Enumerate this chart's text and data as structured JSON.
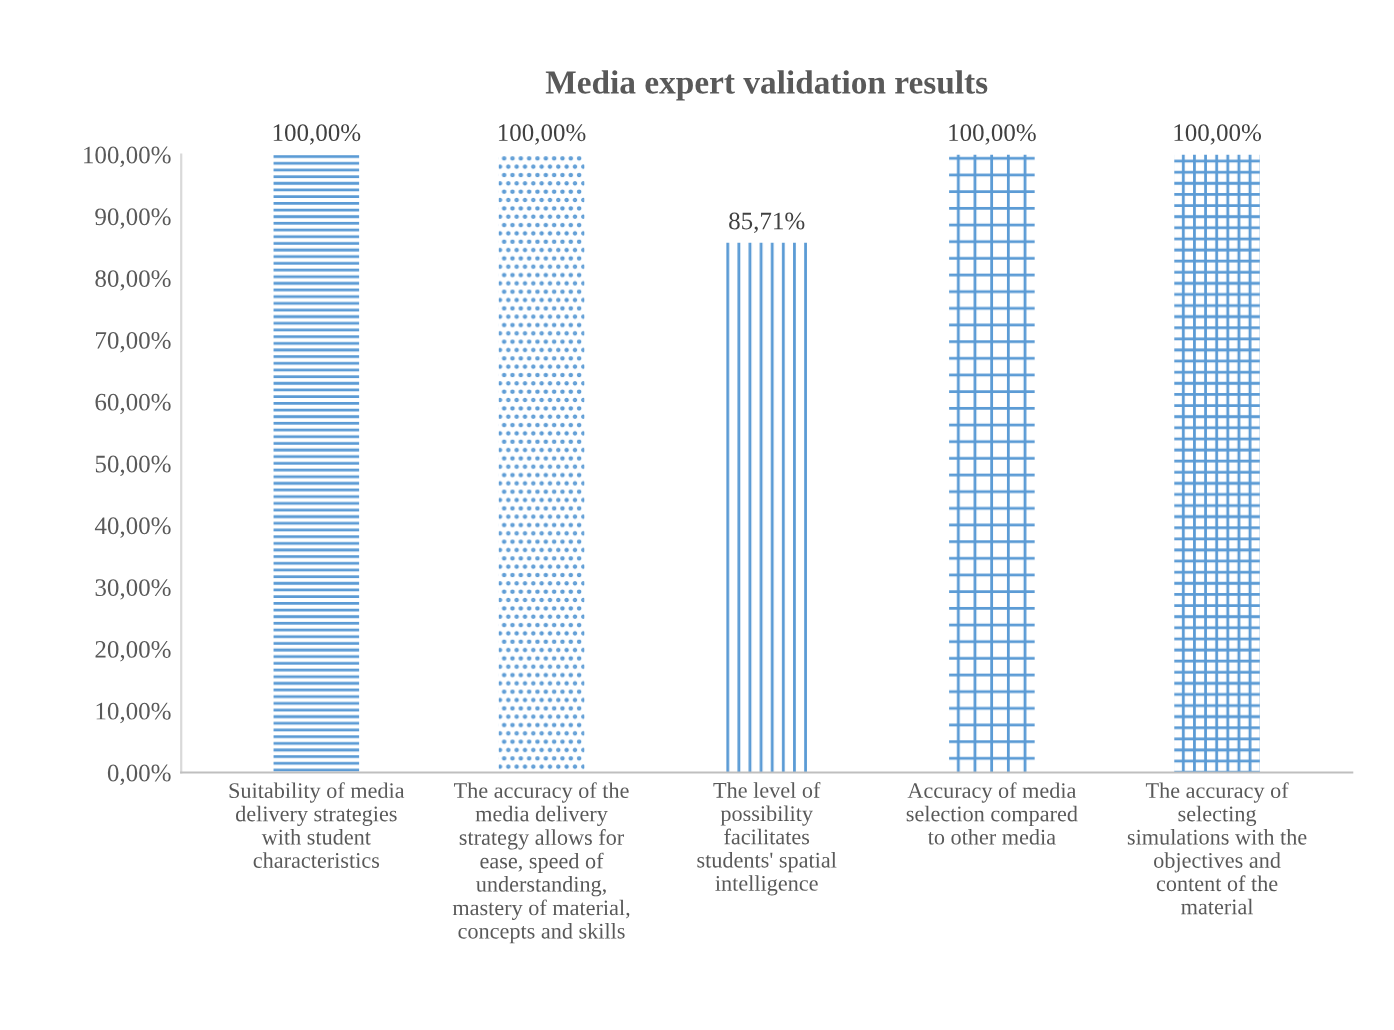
{
  "chart_data": {
    "type": "bar",
    "title": "Media expert validation results",
    "categories": [
      "Suitability of media delivery strategies with student characteristics",
      "The accuracy of the media delivery strategy allows for ease, speed of understanding, mastery of material, concepts and skills",
      "The level of possibility facilitates students' spatial intelligence",
      "Accuracy of media selection compared to other media",
      "The accuracy of selecting simulations with the objectives and content of the material"
    ],
    "values": [
      100,
      100,
      85.71,
      100,
      100
    ],
    "colors": [
      "#5b9bd5",
      "#5b9bd5",
      "#5b9bd5",
      "#5b9bd5",
      "#5b9bd5"
    ],
    "value_labels": [
      "100,00%",
      "100,00%",
      "85,71%",
      "100,00%",
      "100,00%"
    ],
    "ylim": [
      0,
      100
    ],
    "yticks": [
      {
        "value": 0,
        "label": "0,00%"
      },
      {
        "value": 10,
        "label": "10,00%"
      },
      {
        "value": 20,
        "label": "20,00%"
      },
      {
        "value": 30,
        "label": "30,00%"
      },
      {
        "value": 40,
        "label": "40,00%"
      },
      {
        "value": 50,
        "label": "50,00%"
      },
      {
        "value": 60,
        "label": "60,00%"
      },
      {
        "value": 70,
        "label": "70,00%"
      },
      {
        "value": 80,
        "label": "80,00%"
      },
      {
        "value": 90,
        "label": "90,00%"
      },
      {
        "value": 100,
        "label": "100,00%"
      }
    ],
    "grid": false,
    "legend": false
  }
}
